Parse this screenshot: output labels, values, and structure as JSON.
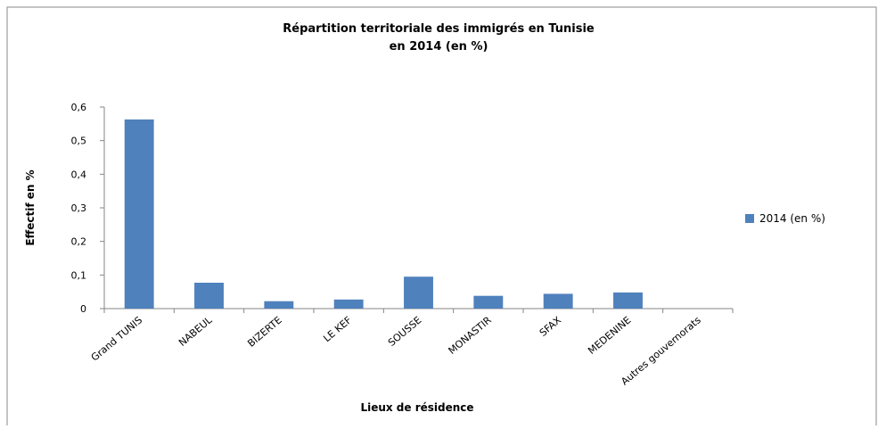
{
  "chart_data": {
    "type": "bar",
    "title": [
      "Répartition territoriale des immigrés en Tunisie",
      "en 2014 (en %)"
    ],
    "x_label": "Lieux de résidence",
    "y_label": "Effectif en %",
    "categories": [
      "Grand TUNIS",
      "NABEUL",
      "BIZERTE",
      "LE KEF",
      "SOUSSE",
      "MONASTIR",
      "SFAX",
      "MEDENINE",
      "Autres gouvernorats"
    ],
    "series": [
      {
        "name": "2014 (en %)",
        "color": "#4f81bd",
        "values": [
          0.563,
          0.077,
          0.022,
          0.027,
          0.095,
          0.038,
          0.044,
          0.048,
          0
        ]
      }
    ],
    "ylim": [
      0,
      0.6
    ],
    "yticks": [
      0,
      {
        "value": 0.1,
        "label": "0,1"
      },
      {
        "value": 0.2,
        "label": "0,2"
      },
      {
        "value": 0.3,
        "label": "0,3"
      },
      {
        "value": 0.4,
        "label": "0,4"
      },
      {
        "value": 0.5,
        "label": "0,5"
      },
      {
        "value": 0.6,
        "label": "0,6"
      }
    ],
    "grid": false,
    "legend": "right"
  }
}
